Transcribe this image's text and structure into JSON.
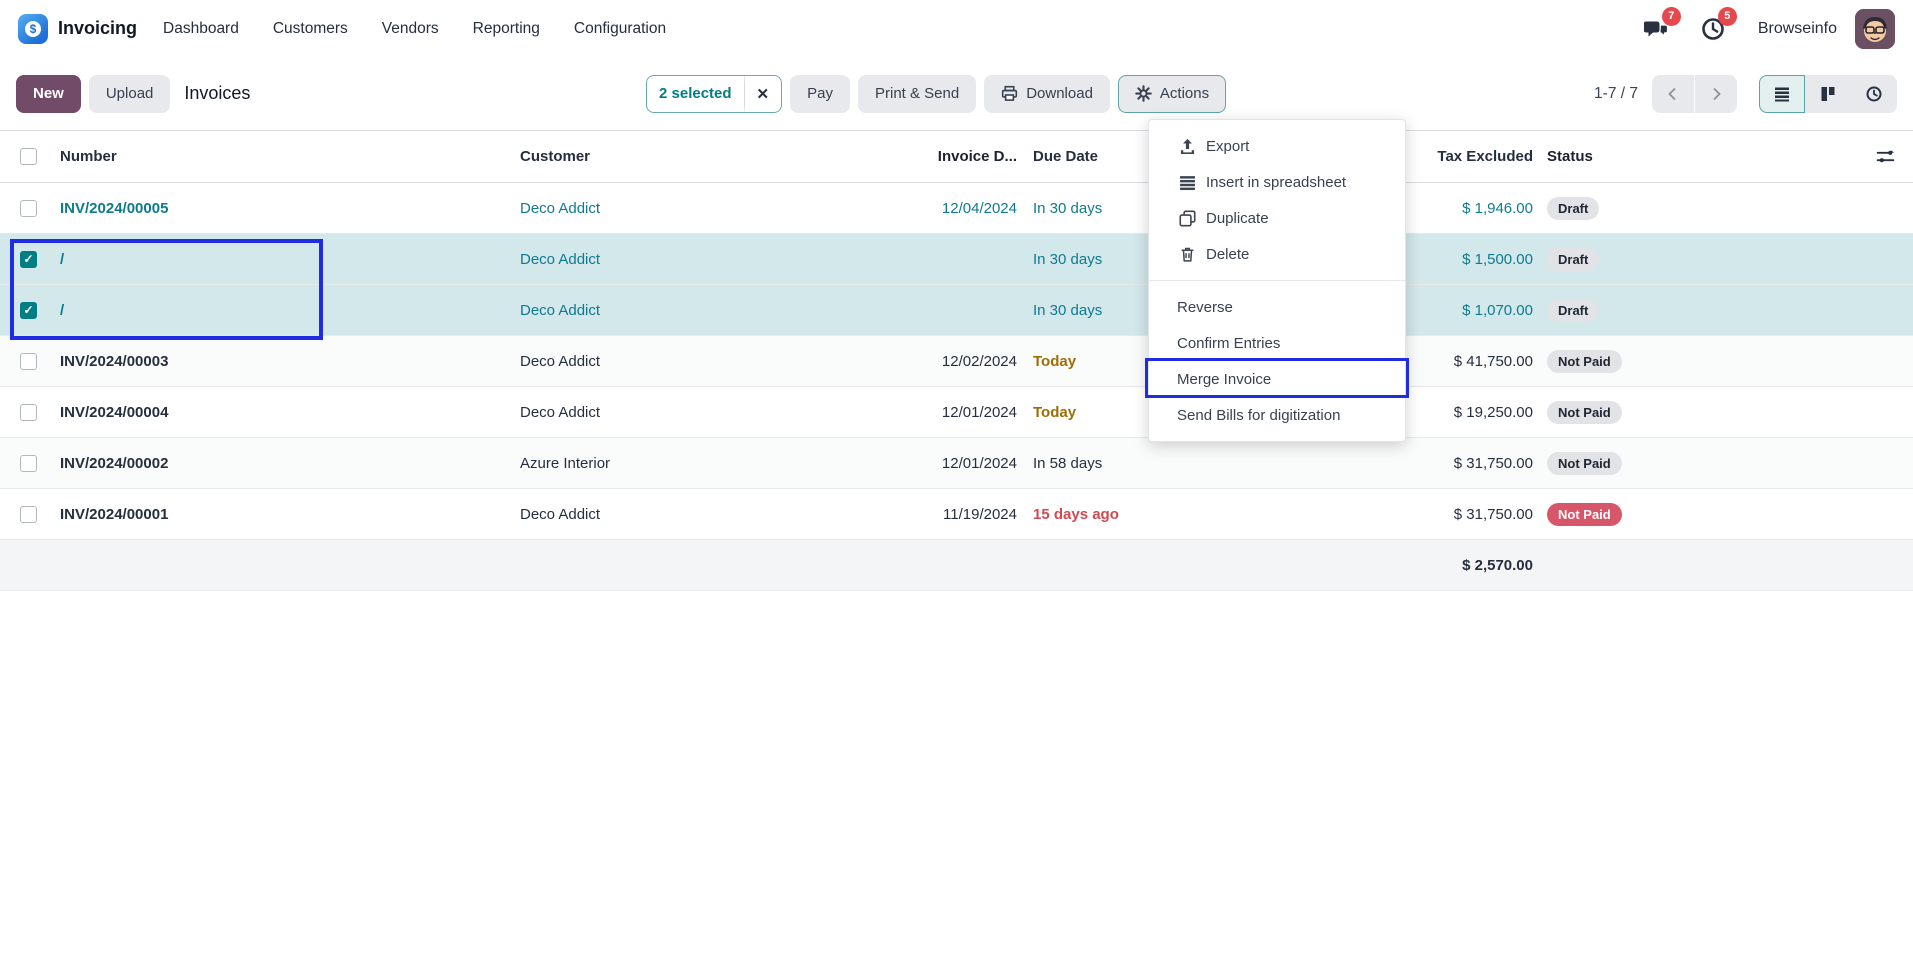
{
  "topbar": {
    "app_name": "Invoicing",
    "menus": [
      "Dashboard",
      "Customers",
      "Vendors",
      "Reporting",
      "Configuration"
    ],
    "chat_badge": "7",
    "activity_badge": "5",
    "user_name": "Browseinfo"
  },
  "control": {
    "new_label": "New",
    "upload_label": "Upload",
    "breadcrumb": "Invoices",
    "selected_chip": "2 selected",
    "pay_label": "Pay",
    "print_send_label": "Print & Send",
    "download_label": "Download",
    "actions_label": "Actions",
    "pager": "1-7 / 7"
  },
  "actions_menu": {
    "items": [
      {
        "icon": "export-icon",
        "label": "Export"
      },
      {
        "icon": "spreadsheet-icon",
        "label": "Insert in spreadsheet"
      },
      {
        "icon": "duplicate-icon",
        "label": "Duplicate"
      },
      {
        "icon": "trash-icon",
        "label": "Delete"
      },
      {
        "divider": true
      },
      {
        "label": "Reverse"
      },
      {
        "label": "Confirm Entries"
      },
      {
        "label": "Merge Invoice",
        "highlighted": true
      },
      {
        "label": "Send Bills for digitization"
      }
    ]
  },
  "table": {
    "headers": {
      "number": "Number",
      "customer": "Customer",
      "invoice_date": "Invoice D...",
      "due_date": "Due Date",
      "tax_excluded": "Tax Excluded",
      "status": "Status"
    },
    "rows": [
      {
        "number": "INV/2024/00005",
        "customer": "Deco Addict",
        "invoice_date": "12/04/2024",
        "due_date": "In 30 days",
        "due_variant": "teal",
        "amount": "$ 1,946.00",
        "status": "Draft",
        "status_variant": "muted",
        "draft": true,
        "checked": false,
        "selected": false
      },
      {
        "number": "/",
        "customer": "Deco Addict",
        "invoice_date": "",
        "due_date": "In 30 days",
        "due_variant": "teal",
        "amount": "$ 1,500.00",
        "status": "Draft",
        "status_variant": "muted",
        "draft": true,
        "checked": true,
        "selected": true
      },
      {
        "number": "/",
        "customer": "Deco Addict",
        "invoice_date": "",
        "due_date": "In 30 days",
        "due_variant": "teal",
        "amount": "$ 1,070.00",
        "status": "Draft",
        "status_variant": "muted",
        "draft": true,
        "checked": true,
        "selected": true
      },
      {
        "number": "INV/2024/00003",
        "customer": "Deco Addict",
        "invoice_date": "12/02/2024",
        "due_date": "Today",
        "due_variant": "warn",
        "amount": "$ 41,750.00",
        "status": "Not Paid",
        "status_variant": "muted",
        "draft": false,
        "checked": false,
        "selected": false
      },
      {
        "number": "INV/2024/00004",
        "customer": "Deco Addict",
        "invoice_date": "12/01/2024",
        "due_date": "Today",
        "due_variant": "warn",
        "amount": "$ 19,250.00",
        "status": "Not Paid",
        "status_variant": "muted",
        "draft": false,
        "checked": false,
        "selected": false
      },
      {
        "number": "INV/2024/00002",
        "customer": "Azure Interior",
        "invoice_date": "12/01/2024",
        "due_date": "In 58 days",
        "due_variant": "",
        "amount": "$ 31,750.00",
        "status": "Not Paid",
        "status_variant": "muted",
        "draft": false,
        "checked": false,
        "selected": false
      },
      {
        "number": "INV/2024/00001",
        "customer": "Deco Addict",
        "invoice_date": "11/19/2024",
        "due_date": "15 days ago",
        "due_variant": "danger",
        "amount": "$ 31,750.00",
        "status": "Not Paid",
        "status_variant": "danger",
        "draft": false,
        "checked": false,
        "selected": false
      }
    ],
    "total_tax_excluded": "$ 2,570.00"
  },
  "colors": {
    "accent_teal": "#017e84",
    "link_teal": "#0e7a8f",
    "selected_row_bg": "#d3e8ea",
    "annotation_blue": "#1f2ce2",
    "primary_purple": "#714b67",
    "warning_text": "#9f6d05",
    "overdue_red": "#cf4a52",
    "danger_badge": "#d8566a",
    "notification_red": "#e5484d"
  }
}
